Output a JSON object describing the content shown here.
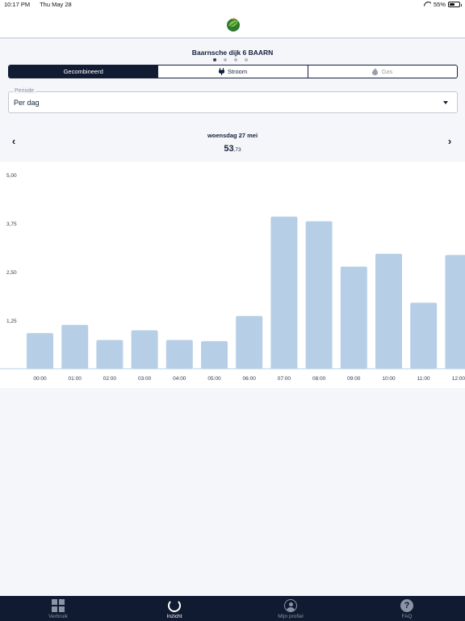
{
  "status": {
    "time": "10:17 PM",
    "date": "Thu May 28",
    "battery": "55%",
    "battery_level": 0.55
  },
  "header": {
    "logo_icon": "leaf-logo-icon"
  },
  "address": "Baarnsche dijk 6 BAARN",
  "pager": {
    "count": 4,
    "active": 0
  },
  "segments": [
    {
      "label": "Gecombineerd",
      "icon": ""
    },
    {
      "label": "Stroom",
      "icon": "plug-icon"
    },
    {
      "label": "Gas",
      "icon": "flame-icon"
    }
  ],
  "periode": {
    "label": "Periode",
    "value": "Per dag"
  },
  "datenav": {
    "date": "woensdag 27 mei",
    "total_main": "53",
    "total_decimals": ",73"
  },
  "chart_data": {
    "type": "bar",
    "categories": [
      "00:00",
      "01:00",
      "02:00",
      "03:00",
      "04:00",
      "05:00",
      "06:00",
      "07:00",
      "08:00",
      "09:00",
      "10:00",
      "11:00",
      "12:00"
    ],
    "values": [
      0.92,
      1.13,
      0.74,
      0.99,
      0.74,
      0.71,
      1.36,
      3.92,
      3.8,
      2.63,
      2.96,
      1.7,
      2.93
    ],
    "yticks": [
      "1,25",
      "2,50",
      "3,75",
      "5,00"
    ],
    "ytick_values": [
      1.25,
      2.5,
      3.75,
      5.0
    ],
    "ylim": [
      0,
      5
    ],
    "title": "",
    "xlabel": "",
    "ylabel": "",
    "bar_color": "#b7cfe6"
  },
  "tabs": [
    {
      "label": "Verbruik",
      "icon": "grid-icon",
      "active": false
    },
    {
      "label": "Inzicht",
      "icon": "ring-icon",
      "active": true
    },
    {
      "label": "Mijn profiel",
      "icon": "user-icon",
      "active": false
    },
    {
      "label": "FAQ",
      "icon": "question-icon",
      "active": false
    }
  ]
}
